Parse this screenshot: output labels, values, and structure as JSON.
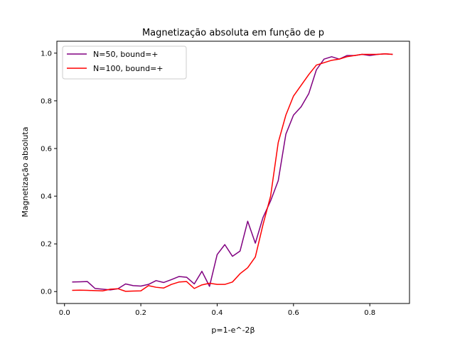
{
  "chart_data": {
    "type": "line",
    "title": "Magnetização absoluta em função de p",
    "xlabel": "p=1-e^-2β",
    "ylabel": "Magnetização absoluta",
    "xlim": [
      -0.02,
      0.904
    ],
    "ylim": [
      -0.05,
      1.05
    ],
    "xticks": [
      0.0,
      0.2,
      0.4,
      0.6,
      0.8
    ],
    "xtick_labels": [
      "0.0",
      "0.2",
      "0.4",
      "0.6",
      "0.8"
    ],
    "yticks": [
      0.0,
      0.2,
      0.4,
      0.6,
      0.8,
      1.0
    ],
    "ytick_labels": [
      "0.0",
      "0.2",
      "0.4",
      "0.6",
      "0.8",
      "1.0"
    ],
    "grid": false,
    "legend_position": "top-left",
    "series": [
      {
        "name": "N=50, bound=+",
        "color": "#800080",
        "x": [
          0.02,
          0.04,
          0.06,
          0.08,
          0.1,
          0.12,
          0.14,
          0.16,
          0.18,
          0.2,
          0.22,
          0.24,
          0.26,
          0.28,
          0.3,
          0.32,
          0.34,
          0.36,
          0.38,
          0.4,
          0.42,
          0.44,
          0.46,
          0.48,
          0.5,
          0.52,
          0.54,
          0.56,
          0.58,
          0.6,
          0.62,
          0.64,
          0.66,
          0.68,
          0.7,
          0.72,
          0.74,
          0.76,
          0.78,
          0.8,
          0.82,
          0.84,
          0.86
        ],
        "y": [
          0.04,
          0.041,
          0.042,
          0.013,
          0.01,
          0.007,
          0.012,
          0.032,
          0.025,
          0.023,
          0.03,
          0.046,
          0.038,
          0.05,
          0.063,
          0.06,
          0.032,
          0.085,
          0.022,
          0.155,
          0.197,
          0.148,
          0.17,
          0.295,
          0.203,
          0.31,
          0.38,
          0.465,
          0.66,
          0.74,
          0.775,
          0.83,
          0.93,
          0.975,
          0.985,
          0.975,
          0.99,
          0.99,
          0.995,
          0.99,
          0.995,
          0.997,
          0.995
        ]
      },
      {
        "name": "N=100, bound=+",
        "color": "#ff0000",
        "x": [
          0.02,
          0.04,
          0.06,
          0.08,
          0.1,
          0.12,
          0.14,
          0.16,
          0.18,
          0.2,
          0.22,
          0.24,
          0.26,
          0.28,
          0.3,
          0.32,
          0.34,
          0.36,
          0.38,
          0.4,
          0.42,
          0.44,
          0.46,
          0.48,
          0.5,
          0.52,
          0.54,
          0.56,
          0.58,
          0.6,
          0.62,
          0.64,
          0.66,
          0.68,
          0.7,
          0.72,
          0.74,
          0.76,
          0.78,
          0.8,
          0.82,
          0.84,
          0.86
        ],
        "y": [
          0.005,
          0.006,
          0.005,
          0.004,
          0.003,
          0.01,
          0.012,
          0.001,
          0.002,
          0.003,
          0.025,
          0.018,
          0.015,
          0.03,
          0.04,
          0.042,
          0.013,
          0.028,
          0.035,
          0.03,
          0.03,
          0.04,
          0.075,
          0.1,
          0.145,
          0.28,
          0.4,
          0.625,
          0.74,
          0.82,
          0.865,
          0.91,
          0.95,
          0.96,
          0.97,
          0.975,
          0.985,
          0.99,
          0.995,
          0.995,
          0.995,
          0.997,
          0.995
        ]
      }
    ]
  }
}
